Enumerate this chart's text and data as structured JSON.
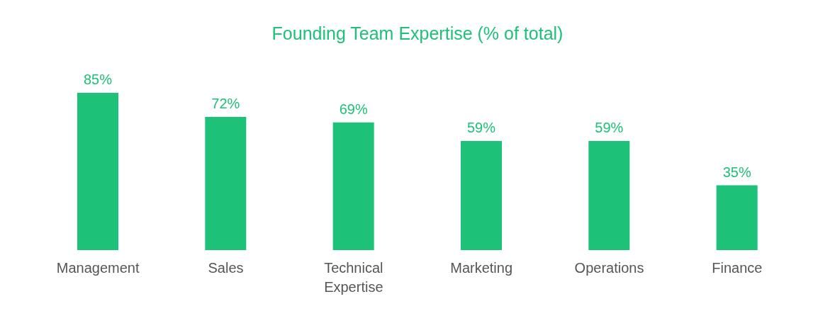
{
  "chart_data": {
    "type": "bar",
    "title": "Founding Team Expertise (% of total)",
    "categories": [
      "Management",
      "Sales",
      "Technical Expertise",
      "Marketing",
      "Operations",
      "Finance"
    ],
    "values": [
      85,
      72,
      69,
      59,
      59,
      35
    ],
    "value_labels": [
      "85%",
      "72%",
      "69%",
      "59%",
      "59%",
      "35%"
    ],
    "color": "#1dc177",
    "grid": false
  }
}
